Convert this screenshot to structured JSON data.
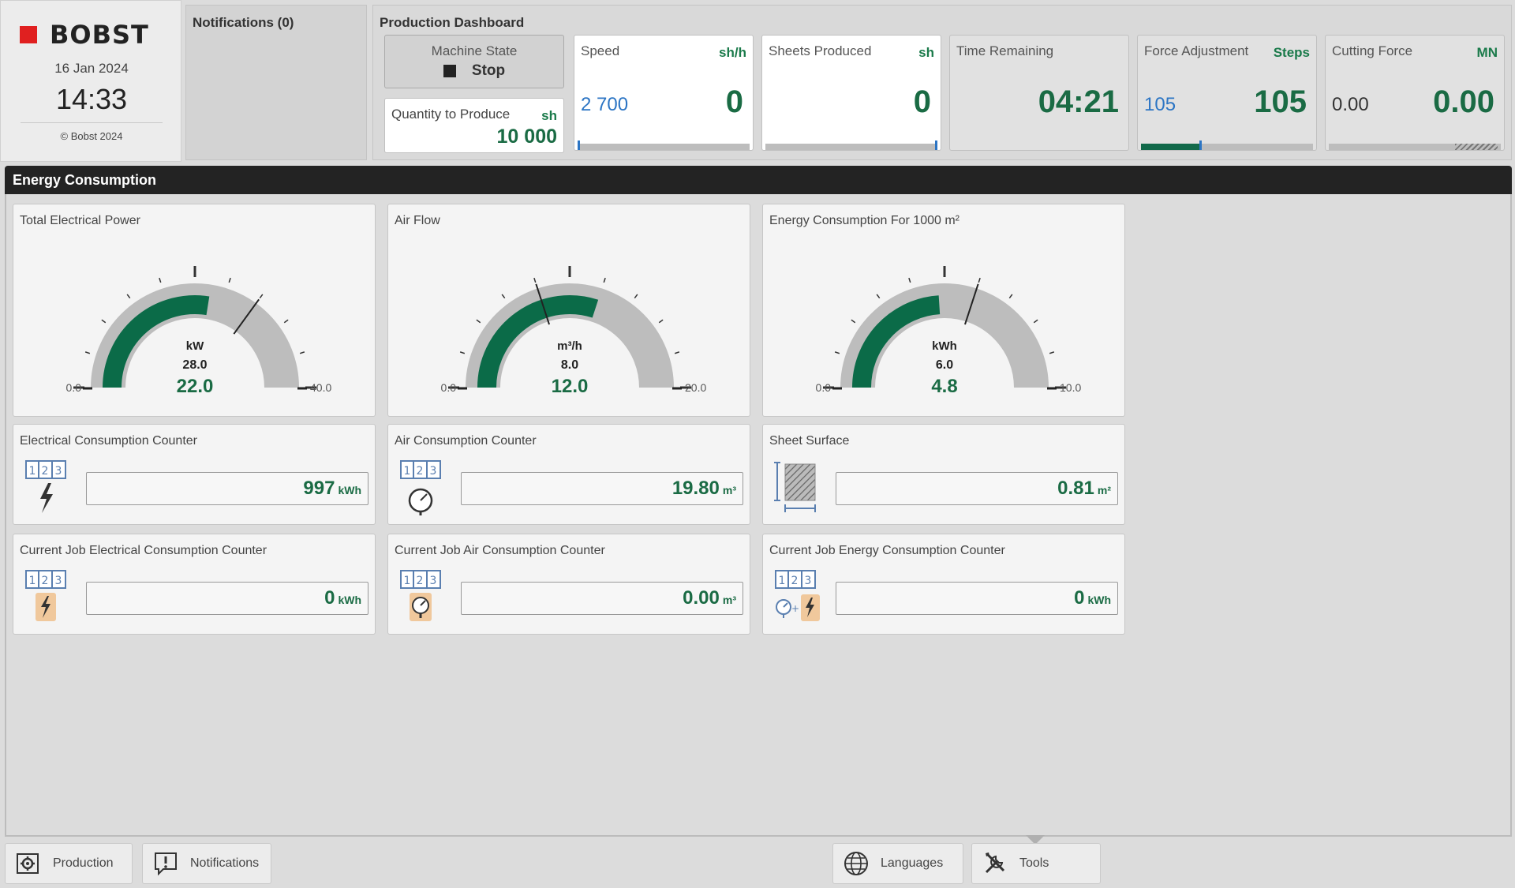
{
  "brand": {
    "name": "BOBST",
    "date": "16 Jan 2024",
    "time": "14:33",
    "copyright": "© Bobst 2024",
    "accent": "#e02020"
  },
  "notifications": {
    "title": "Notifications (0)"
  },
  "dashboard": {
    "title": "Production Dashboard",
    "machine_state": {
      "label": "Machine State",
      "value": "Stop",
      "icon": "stop-square-icon"
    },
    "quantity": {
      "label": "Quantity to Produce",
      "unit": "sh",
      "value": "10 000"
    },
    "speed": {
      "label": "Speed",
      "unit": "sh/h",
      "target": "2 700",
      "value": "0"
    },
    "sheets": {
      "label": "Sheets Produced",
      "unit": "sh",
      "value": "0"
    },
    "time_remaining": {
      "label": "Time Remaining",
      "value": "04:21"
    },
    "force_adjustment": {
      "label": "Force Adjustment",
      "unit": "Steps",
      "target": "105",
      "value": "105",
      "level": 0.35
    },
    "cutting_force": {
      "label": "Cutting Force",
      "unit": "MN",
      "target": "0.00",
      "value": "0.00"
    }
  },
  "energy": {
    "title": "Energy Consumption",
    "gauges": [
      {
        "title": "Total Electrical Power",
        "unit": "kW",
        "min": 0,
        "max": 40,
        "min_label": "0.0",
        "max_label": "40.0",
        "reference": 28.0,
        "reference_label": "28.0",
        "value": 22.0,
        "value_label": "22.0"
      },
      {
        "title": "Air Flow",
        "unit": "m³/h",
        "min": 0,
        "max": 20,
        "min_label": "0.0",
        "max_label": "20.0",
        "reference": 8.0,
        "reference_label": "8.0",
        "value": 12.0,
        "value_label": "12.0"
      },
      {
        "title": "Energy Consumption For 1000 m²",
        "unit": "kWh",
        "min": 0,
        "max": 10,
        "min_label": "0.0",
        "max_label": "10.0",
        "reference": 6.0,
        "reference_label": "6.0",
        "value": 4.8,
        "value_label": "4.8"
      }
    ],
    "counters": [
      {
        "title": "Electrical Consumption Counter",
        "value": "997",
        "unit": "kWh",
        "icon": "electric-counter-icon"
      },
      {
        "title": "Air Consumption Counter",
        "value": "19.80",
        "unit": "m³",
        "icon": "air-counter-icon"
      },
      {
        "title": "Sheet Surface",
        "value": "0.81",
        "unit": "m²",
        "icon": "sheet-surface-icon"
      },
      {
        "title": "Current Job Electrical Consumption Counter",
        "value": "0",
        "unit": "kWh",
        "icon": "job-electric-counter-icon"
      },
      {
        "title": "Current Job Air Consumption Counter",
        "value": "0.00",
        "unit": "m³",
        "icon": "job-air-counter-icon"
      },
      {
        "title": "Current Job Energy Consumption Counter",
        "value": "0",
        "unit": "kWh",
        "icon": "job-energy-counter-icon"
      }
    ],
    "colors": {
      "fill": "#0b6b48",
      "track": "#bdbdbd",
      "value_text": "#1a6b44"
    }
  },
  "bottom_nav": {
    "production": "Production",
    "notifications": "Notifications",
    "languages": "Languages",
    "tools": "Tools"
  }
}
